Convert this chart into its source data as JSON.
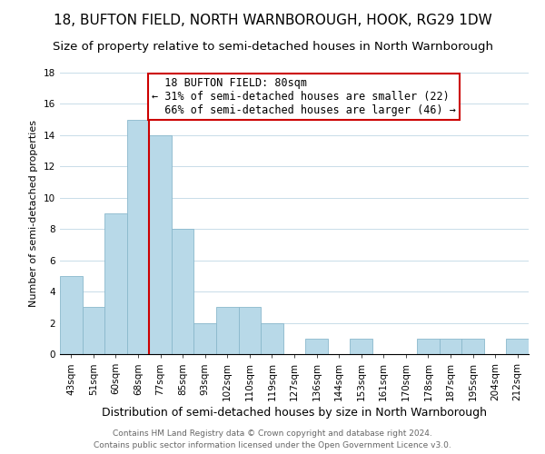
{
  "title": "18, BUFTON FIELD, NORTH WARNBOROUGH, HOOK, RG29 1DW",
  "subtitle": "Size of property relative to semi-detached houses in North Warnborough",
  "xlabel": "Distribution of semi-detached houses by size in North Warnborough",
  "ylabel": "Number of semi-detached properties",
  "footer_line1": "Contains HM Land Registry data © Crown copyright and database right 2024.",
  "footer_line2": "Contains public sector information licensed under the Open Government Licence v3.0.",
  "bin_labels": [
    "43sqm",
    "51sqm",
    "60sqm",
    "68sqm",
    "77sqm",
    "85sqm",
    "93sqm",
    "102sqm",
    "110sqm",
    "119sqm",
    "127sqm",
    "136sqm",
    "144sqm",
    "153sqm",
    "161sqm",
    "170sqm",
    "178sqm",
    "187sqm",
    "195sqm",
    "204sqm",
    "212sqm"
  ],
  "bar_values": [
    5,
    3,
    9,
    15,
    14,
    8,
    2,
    3,
    3,
    2,
    0,
    1,
    0,
    1,
    0,
    0,
    1,
    1,
    1,
    0,
    1
  ],
  "bar_color": "#b8d9e8",
  "bar_edge_color": "#8ab8cc",
  "property_label": "18 BUFTON FIELD: 80sqm",
  "pct_smaller": 31,
  "pct_larger": 66,
  "n_smaller": 22,
  "n_larger": 46,
  "vline_x": 3.5,
  "vline_color": "#cc0000",
  "annotation_box_color": "#cc0000",
  "ylim": [
    0,
    18
  ],
  "yticks": [
    0,
    2,
    4,
    6,
    8,
    10,
    12,
    14,
    16,
    18
  ],
  "title_fontsize": 11,
  "subtitle_fontsize": 9.5,
  "xlabel_fontsize": 9,
  "ylabel_fontsize": 8,
  "tick_fontsize": 7.5,
  "footer_fontsize": 6.5,
  "annotation_fontsize": 8.5,
  "grid_color": "#c8dce8"
}
